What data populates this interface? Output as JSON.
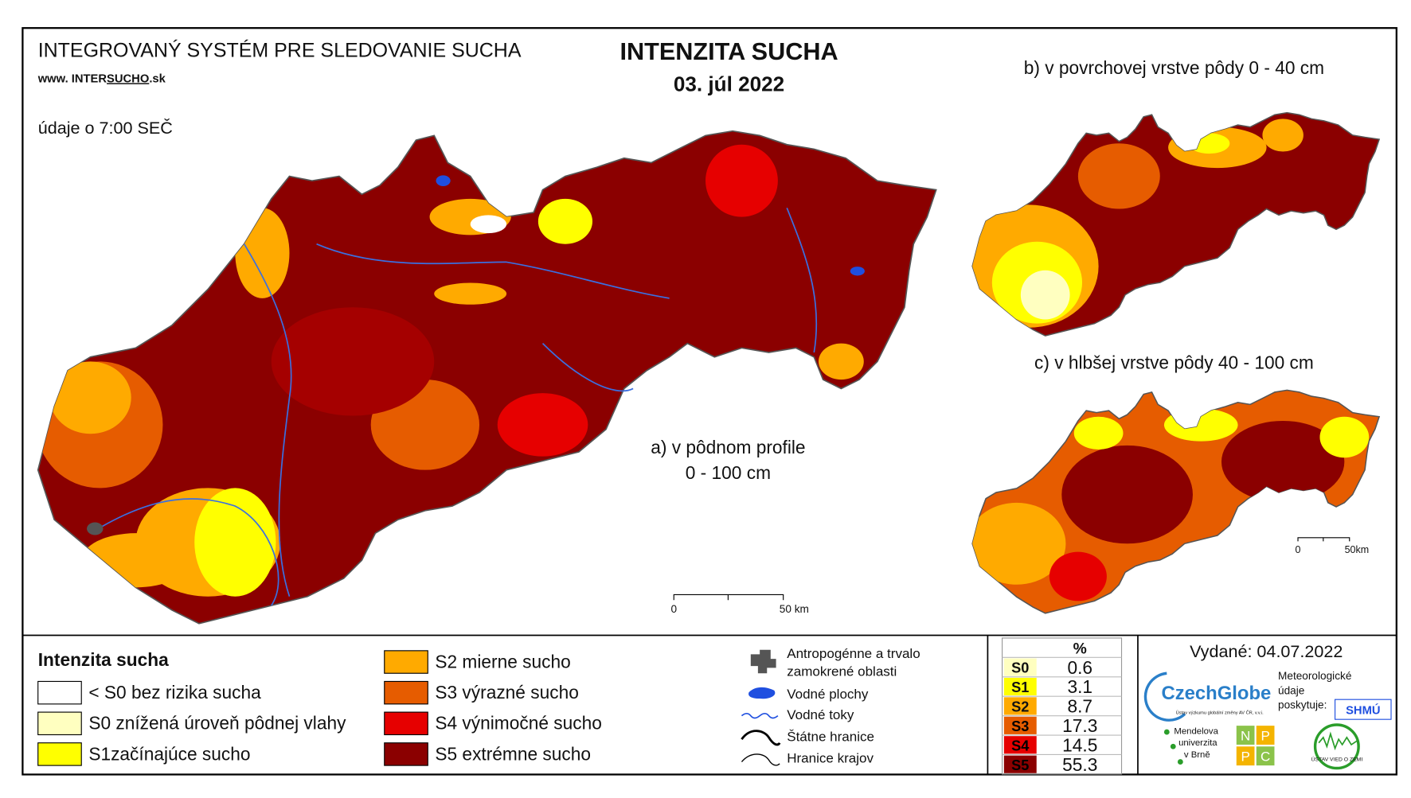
{
  "header": {
    "system": "INTEGROVANÝ SYSTÉM PRE SLEDOVANIE SUCHA",
    "web_prefix": "www. INTER",
    "web_mid": "SUCHO",
    "web_suffix": ".sk",
    "time_note": "údaje o 7:00 SEČ",
    "title": "INTENZITA SUCHA",
    "date": "03. júl 2022"
  },
  "maps": [
    {
      "label": "a) v pôdnom profile",
      "sublabel": "0 - 100 cm",
      "scale_start": "0",
      "scale_end": "50 km"
    },
    {
      "label": "b) v povrchovej vrstve pôdy 0 - 40 cm"
    },
    {
      "label": "c) v hlbšej vrstve pôdy 40 - 100 cm",
      "scale_start": "0",
      "scale_end": "50km"
    }
  ],
  "legend": {
    "title": "Intenzita sucha",
    "items": [
      {
        "label": "< S0 bez rizika sucha",
        "color": "#ffffff"
      },
      {
        "label": "S0 znížená úroveň pôdnej vlahy",
        "color": "#ffffc0"
      },
      {
        "label": "S1začínajúce sucho",
        "color": "#ffff00"
      },
      {
        "label": "S2 mierne sucho",
        "color": "#ffaa00"
      },
      {
        "label": "S3 výrazné sucho",
        "color": "#e65c00"
      },
      {
        "label": "S4 výnimočné sucho",
        "color": "#e60000"
      },
      {
        "label": "S5 extrémne sucho",
        "color": "#8b0000"
      }
    ]
  },
  "symbols": [
    "Antropogénne a trvalo",
    "zamokrené oblasti",
    "Vodné plochy",
    "Vodné toky",
    "Štátne hranice",
    "Hranice krajov"
  ],
  "stats": {
    "header": "%",
    "rows": [
      {
        "class": "S0",
        "value": 0.6,
        "color": "#ffffc0"
      },
      {
        "class": "S1",
        "value": 3.1,
        "color": "#ffff00"
      },
      {
        "class": "S2",
        "value": 8.7,
        "color": "#ffaa00"
      },
      {
        "class": "S3",
        "value": 17.3,
        "color": "#e65c00"
      },
      {
        "class": "S4",
        "value": 14.5,
        "color": "#e60000"
      },
      {
        "class": "S5",
        "value": 55.3,
        "color": "#8b0000"
      }
    ]
  },
  "issued": "Vydané: 04.07.2022",
  "logos": {
    "czechglobe": "CzechGlobe",
    "czechglobe_sub": "Ústav výzkumu globální změny AV ČR, v.v.i.",
    "meteo": [
      "Meteorologické",
      "údaje",
      "poskytuje:"
    ],
    "shmu": "SHMÚ",
    "mendel": [
      "Mendelova",
      "univerzita",
      "v Brně"
    ],
    "npc": [
      "N",
      "P",
      "P",
      "C"
    ],
    "uvz": "ÚSTAV VIED O ZEMI"
  }
}
